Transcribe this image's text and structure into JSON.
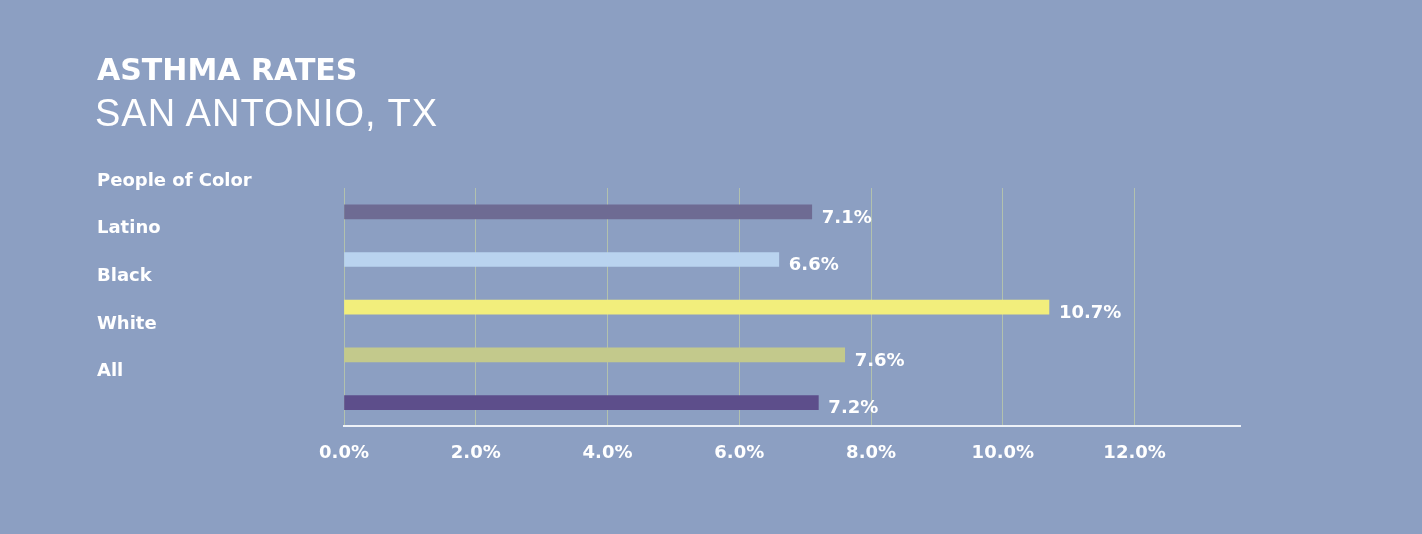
{
  "chart_data": {
    "type": "bar",
    "orientation": "horizontal",
    "title": "ASTHMA RATES",
    "subtitle": "SAN ANTONIO, TX",
    "categories": [
      "People of Color",
      "Latino",
      "Black",
      "White",
      "All"
    ],
    "values": [
      7.1,
      6.6,
      10.7,
      7.6,
      7.2
    ],
    "colors": [
      "#6e6b93",
      "#b9d3ef",
      "#f2ee7c",
      "#c3c98c",
      "#5d4e8b"
    ],
    "value_labels": [
      "7.1%",
      "6.6%",
      "10.7%",
      "7.6%",
      "7.2%"
    ],
    "xlim": [
      0,
      13.6
    ],
    "xticks": [
      {
        "value": 0,
        "label": "0.0%"
      },
      {
        "value": 2,
        "label": "2.0%"
      },
      {
        "value": 4,
        "label": "4.0%"
      },
      {
        "value": 6,
        "label": "6.0%"
      },
      {
        "value": 8,
        "label": "8.0%"
      },
      {
        "value": 10,
        "label": "10.0%"
      },
      {
        "value": 12,
        "label": "12.0%"
      }
    ],
    "grid": "x",
    "legend": false
  }
}
